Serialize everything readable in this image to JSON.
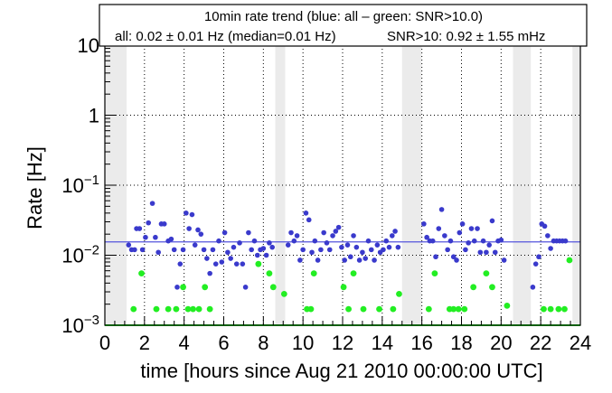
{
  "chart_data": {
    "type": "scatter",
    "title": "10min rate trend (blue: all – green: SNR>10.0)",
    "stats_all": "all:  0.02 ±  0.01 Hz (median=0.01 Hz)",
    "stats_snr": "SNR>10:  0.92 ±  1.55 mHz",
    "xlabel": "time [hours since Aug 21 2010 00:00:00 UTC]",
    "ylabel": "Rate [Hz]",
    "xlim": [
      0,
      24
    ],
    "ylim": [
      0.001,
      10
    ],
    "yscale": "log",
    "grid": true,
    "x_ticks": [
      0,
      2,
      4,
      6,
      8,
      10,
      12,
      14,
      16,
      18,
      20,
      22,
      24
    ],
    "x_tick_labels": [
      "0",
      "2",
      "4",
      "6",
      "8",
      "10",
      "12",
      "14",
      "16",
      "18",
      "20",
      "22",
      "24"
    ],
    "y_ticks": [
      0.001,
      0.01,
      0.1,
      1,
      10
    ],
    "y_tick_labels": [
      {
        "base": "10",
        "exp": "−3"
      },
      {
        "base": "10",
        "exp": "−2"
      },
      {
        "base": "10",
        "exp": "−1"
      },
      {
        "base": "1",
        "exp": ""
      },
      {
        "base": "10",
        "exp": ""
      }
    ],
    "gaps": [
      [
        0,
        1.1
      ],
      [
        8.6,
        9.1
      ],
      [
        15.0,
        16.0
      ],
      [
        20.6,
        21.5
      ],
      [
        23.6,
        24
      ]
    ],
    "median_line": 0.0155,
    "colors": {
      "all": "#3a3acc",
      "snr": "#22ee22",
      "median": "#5555dd",
      "gap": "#ebebeb",
      "frame": "#000000"
    },
    "series": [
      {
        "name": "all",
        "x": [
          1.2,
          1.35,
          1.5,
          1.6,
          1.75,
          1.9,
          2.05,
          2.2,
          2.4,
          2.55,
          2.7,
          2.85,
          3.0,
          3.2,
          3.35,
          3.5,
          3.65,
          3.8,
          3.95,
          4.1,
          4.25,
          4.4,
          4.55,
          4.7,
          4.85,
          5.0,
          5.15,
          5.3,
          5.45,
          5.6,
          5.75,
          5.9,
          6.05,
          6.2,
          6.35,
          6.5,
          6.65,
          6.8,
          6.95,
          7.1,
          7.25,
          7.4,
          7.55,
          7.7,
          7.85,
          8.0,
          8.15,
          8.3,
          8.45,
          9.25,
          9.4,
          9.55,
          9.7,
          9.85,
          10.0,
          10.15,
          10.3,
          10.45,
          10.6,
          10.75,
          10.9,
          11.05,
          11.2,
          11.35,
          11.5,
          11.65,
          11.8,
          11.95,
          12.1,
          12.25,
          12.4,
          12.55,
          12.7,
          12.85,
          13.0,
          13.15,
          13.3,
          13.45,
          13.6,
          13.75,
          13.9,
          14.05,
          14.2,
          14.35,
          14.5,
          14.65,
          14.8,
          16.1,
          16.25,
          16.4,
          16.55,
          16.7,
          16.85,
          17.0,
          17.15,
          17.3,
          17.45,
          17.6,
          17.75,
          17.9,
          18.05,
          18.2,
          18.35,
          18.5,
          18.65,
          18.8,
          18.95,
          19.1,
          19.25,
          19.4,
          19.55,
          19.7,
          19.85,
          20.0,
          20.15,
          21.6,
          21.75,
          21.9,
          22.05,
          22.2,
          22.35,
          22.5,
          22.65,
          22.8,
          22.95,
          23.1,
          23.25
        ],
        "values": [
          0.014,
          0.012,
          0.012,
          0.024,
          0.024,
          0.012,
          0.018,
          0.029,
          0.055,
          0.018,
          0.011,
          0.028,
          0.028,
          0.016,
          0.017,
          0.012,
          0.0035,
          0.0075,
          0.012,
          0.04,
          0.024,
          0.038,
          0.014,
          0.023,
          0.02,
          0.012,
          0.009,
          0.0055,
          0.012,
          0.0075,
          0.016,
          0.008,
          0.021,
          0.011,
          0.009,
          0.013,
          0.0075,
          0.015,
          0.0075,
          0.0035,
          0.021,
          0.012,
          0.016,
          0.01,
          0.012,
          0.0125,
          0.01,
          0.015,
          0.013,
          0.014,
          0.021,
          0.016,
          0.019,
          0.0085,
          0.012,
          0.04,
          0.032,
          0.011,
          0.016,
          0.0085,
          0.012,
          0.021,
          0.015,
          0.012,
          0.019,
          0.022,
          0.025,
          0.013,
          0.0085,
          0.014,
          0.0095,
          0.019,
          0.013,
          0.0085,
          0.011,
          0.009,
          0.016,
          0.012,
          0.0085,
          0.014,
          0.011,
          0.012,
          0.016,
          0.013,
          0.019,
          0.022,
          0.013,
          0.028,
          0.018,
          0.016,
          0.016,
          0.0095,
          0.024,
          0.045,
          0.019,
          0.012,
          0.016,
          0.0095,
          0.0085,
          0.021,
          0.028,
          0.012,
          0.015,
          0.024,
          0.016,
          0.024,
          0.011,
          0.016,
          0.011,
          0.014,
          0.031,
          0.011,
          0.016,
          0.0165,
          0.0085,
          0.0035,
          0.0075,
          0.0095,
          0.028,
          0.026,
          0.019,
          0.0125,
          0.016,
          0.016,
          0.016,
          0.016,
          0.016
        ]
      },
      {
        "name": "SNR>10",
        "x": [
          1.45,
          1.85,
          2.6,
          3.2,
          3.6,
          3.95,
          4.2,
          4.45,
          4.75,
          5.05,
          5.3,
          7.75,
          8.3,
          8.5,
          9.05,
          10.2,
          10.4,
          10.55,
          12.05,
          12.3,
          12.55,
          13.05,
          13.85,
          14.55,
          14.85,
          16.35,
          16.65,
          17.4,
          17.6,
          17.85,
          18.15,
          18.6,
          19.25,
          19.55,
          20.3,
          22.15,
          22.5,
          22.9,
          23.2,
          23.45
        ],
        "values": [
          0.0017,
          0.0055,
          0.0017,
          0.0017,
          0.0017,
          0.0035,
          0.0017,
          0.0017,
          0.0017,
          0.0035,
          0.0017,
          0.0075,
          0.0055,
          0.0035,
          0.0028,
          0.0017,
          0.0017,
          0.0055,
          0.0035,
          0.0017,
          0.0055,
          0.0017,
          0.0017,
          0.0017,
          0.0028,
          0.0017,
          0.0055,
          0.0017,
          0.0017,
          0.0017,
          0.0017,
          0.0035,
          0.0055,
          0.0035,
          0.0019,
          0.0017,
          0.0017,
          0.0017,
          0.0017,
          0.0085
        ]
      }
    ]
  }
}
